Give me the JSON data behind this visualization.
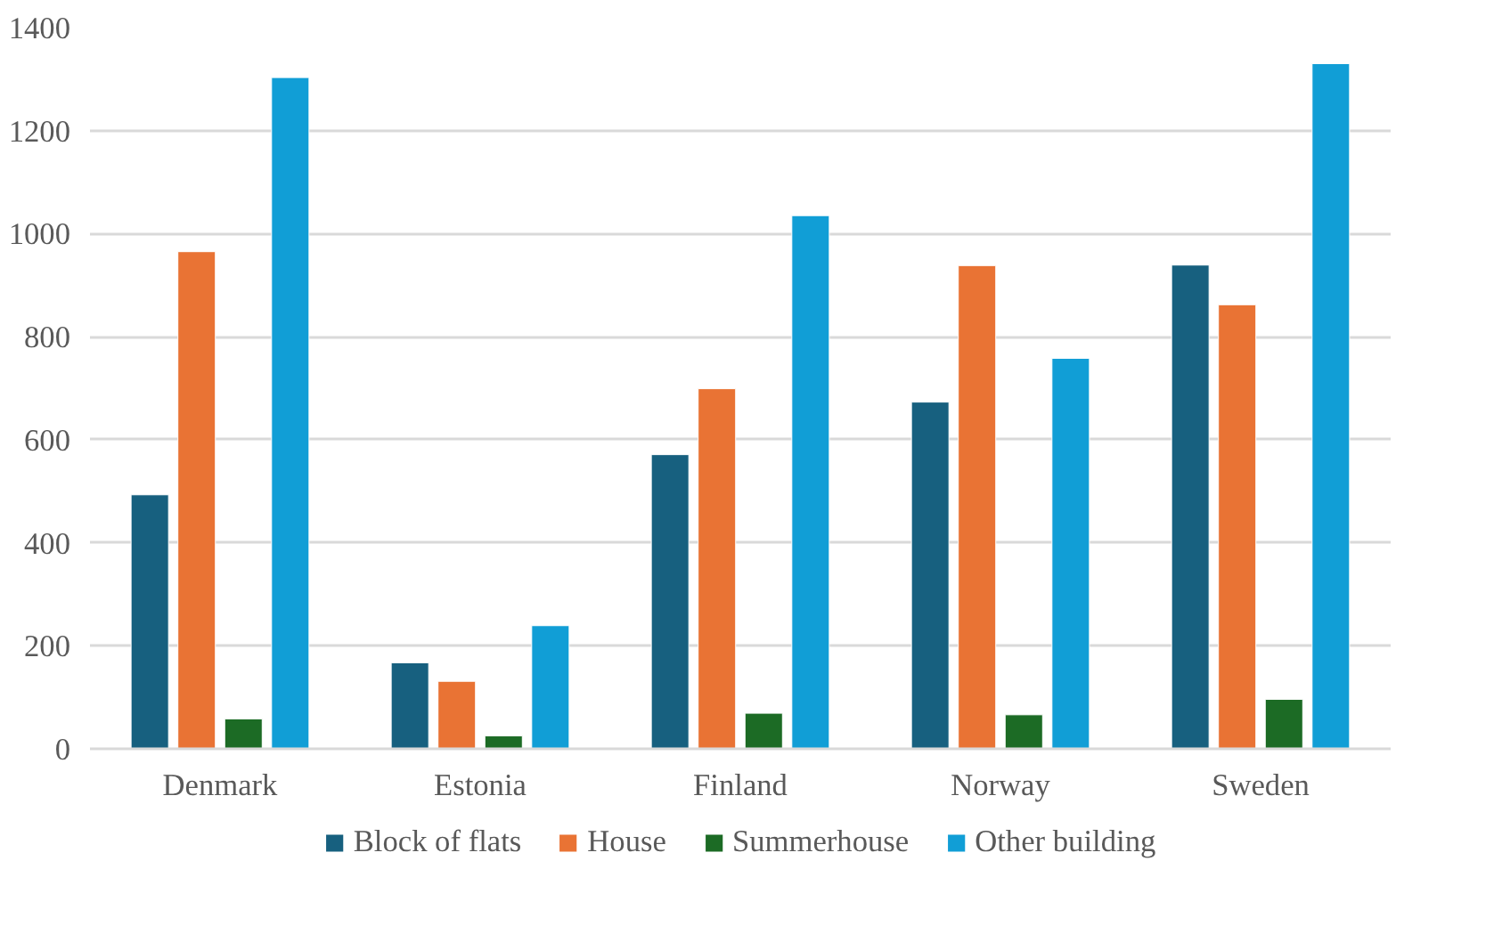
{
  "chart_data": {
    "type": "bar",
    "categories": [
      "Denmark",
      "Estonia",
      "Finland",
      "Norway",
      "Sweden"
    ],
    "series": [
      {
        "name": "Block of flats",
        "color": "#17607f",
        "values": [
          493,
          167,
          571,
          673,
          939
        ]
      },
      {
        "name": "House",
        "color": "#e97334",
        "values": [
          965,
          131,
          699,
          938,
          862
        ]
      },
      {
        "name": "Summerhouse",
        "color": "#1c6b25",
        "values": [
          58,
          25,
          69,
          66,
          96
        ]
      },
      {
        "name": "Other building",
        "color": "#119ed6",
        "values": [
          1303,
          239,
          1035,
          758,
          1330
        ]
      }
    ],
    "ylim": [
      0,
      1400
    ],
    "yticks": [
      0,
      200,
      400,
      600,
      800,
      1000,
      1200,
      1400
    ],
    "grid": "y",
    "legend": "bottom"
  }
}
